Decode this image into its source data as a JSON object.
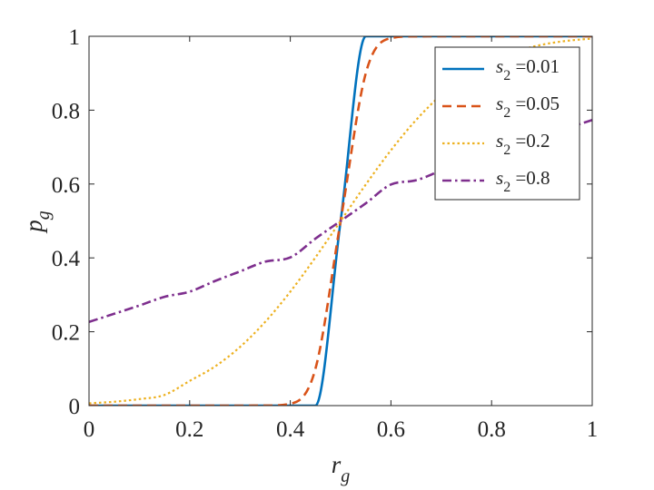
{
  "chart_data": {
    "type": "line",
    "xlabel": {
      "main": "r",
      "sub": "g"
    },
    "ylabel": {
      "main": "p",
      "sub": "g"
    },
    "xlim": [
      0,
      1
    ],
    "ylim": [
      0,
      1
    ],
    "xticks": [
      0,
      0.2,
      0.4,
      0.6,
      0.8,
      1
    ],
    "xtick_labels": [
      "0",
      "0.2",
      "0.4",
      "0.6",
      "0.8",
      "1"
    ],
    "yticks": [
      0,
      0.2,
      0.4,
      0.6,
      0.8,
      1
    ],
    "ytick_labels": [
      "0",
      "0.2",
      "0.4",
      "0.6",
      "0.8",
      "1"
    ],
    "grid": false,
    "legend_position": "top-right",
    "x": [
      0,
      0.05,
      0.1,
      0.15,
      0.2,
      0.25,
      0.3,
      0.35,
      0.4,
      0.45,
      0.5,
      0.55,
      0.6,
      0.65,
      0.7,
      0.75,
      0.8,
      0.85,
      0.9,
      0.95,
      1
    ],
    "series": [
      {
        "legend_symbol": "s",
        "legend_sub": "2",
        "legend_value": " =0.01",
        "color": "#0072BD",
        "dash": "solid",
        "width": 2.6,
        "values": [
          0,
          0,
          0,
          0,
          0,
          0,
          0,
          0,
          0,
          0,
          0.5,
          1,
          1,
          1,
          1,
          1,
          1,
          1,
          1,
          1,
          1
        ]
      },
      {
        "legend_symbol": "s",
        "legend_sub": "2",
        "legend_value": " =0.05",
        "color": "#D95319",
        "dash": "dashed",
        "width": 2.6,
        "values": [
          0,
          0,
          0,
          0,
          0,
          0,
          0,
          0.0001,
          0.005,
          0.1,
          0.5,
          0.9,
          0.995,
          0.9999,
          1,
          1,
          1,
          1,
          1,
          1,
          1
        ]
      },
      {
        "legend_symbol": "s",
        "legend_sub": "2",
        "legend_value": " =0.2",
        "color": "#EDB120",
        "dash": "dotted",
        "width": 2.2,
        "values": [
          0.0062,
          0.0105,
          0.0176,
          0.0289,
          0.0668,
          0.1056,
          0.1587,
          0.2266,
          0.3085,
          0.4013,
          0.5,
          0.5987,
          0.6915,
          0.7734,
          0.8413,
          0.8944,
          0.9332,
          0.9599,
          0.9772,
          0.9878,
          0.9938
        ]
      },
      {
        "legend_symbol": "s",
        "legend_sub": "2",
        "legend_value": " =0.8",
        "color": "#7E2F8E",
        "dash": "dashdot",
        "width": 2.6,
        "values": [
          0.2266,
          0.2487,
          0.2709,
          0.2946,
          0.3085,
          0.3372,
          0.3632,
          0.3897,
          0.4013,
          0.4522,
          0.5,
          0.5478,
          0.5987,
          0.6103,
          0.6368,
          0.6628,
          0.6915,
          0.7054,
          0.7291,
          0.7513,
          0.7734
        ]
      }
    ]
  }
}
